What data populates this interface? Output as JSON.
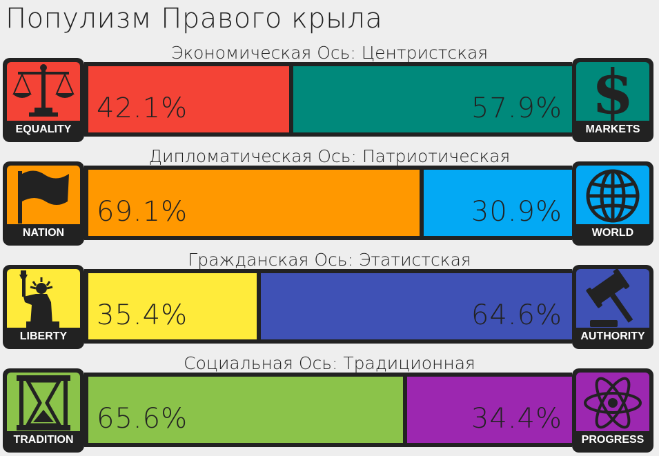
{
  "title": "Популизм Правого крыла",
  "chart_data": {
    "type": "bar",
    "title": "Популизм Правого крыла",
    "axes": [
      {
        "label": "Экономическая Ось: Центристская",
        "left_name": "EQUALITY",
        "right_name": "MARKETS",
        "left_value": 42.1,
        "right_value": 57.9,
        "left_text": "42.1%",
        "right_text": "57.9%",
        "left_color": "#f44336",
        "right_color": "#00897b",
        "left_icon": "scales-icon",
        "right_icon": "dollar-icon"
      },
      {
        "label": "Дипломатическая Ось: Патриотическая",
        "left_name": "NATION",
        "right_name": "WORLD",
        "left_value": 69.1,
        "right_value": 30.9,
        "left_text": "69.1%",
        "right_text": "30.9%",
        "left_color": "#ff9800",
        "right_color": "#03a9f4",
        "left_icon": "flag-icon",
        "right_icon": "globe-icon"
      },
      {
        "label": "Гражданская Ось: Этатистская",
        "left_name": "LIBERTY",
        "right_name": "AUTHORITY",
        "left_value": 35.4,
        "right_value": 64.6,
        "left_text": "35.4%",
        "right_text": "64.6%",
        "left_color": "#ffeb3b",
        "right_color": "#3f51b5",
        "left_icon": "statue-of-liberty-icon",
        "right_icon": "gavel-icon"
      },
      {
        "label": "Социальная Ось: Традиционная",
        "left_name": "TRADITION",
        "right_name": "PROGRESS",
        "left_value": 65.6,
        "right_value": 34.4,
        "left_text": "65.6%",
        "right_text": "34.4%",
        "left_color": "#8bc34a",
        "right_color": "#9c27b0",
        "left_icon": "hourglass-icon",
        "right_icon": "atom-icon"
      }
    ]
  }
}
